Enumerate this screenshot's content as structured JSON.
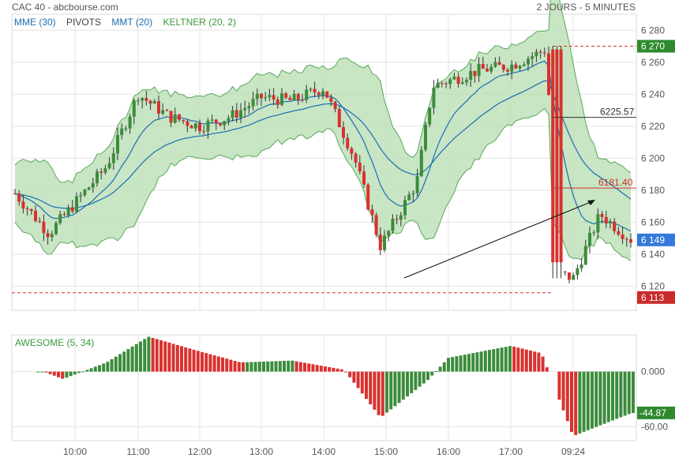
{
  "header": {
    "left_title": "CAC 40 - abcbourse.com",
    "right_title": "2 JOURS - 5 MINUTES"
  },
  "legend": [
    {
      "label": "MME (30)",
      "color": "#1a6fb3"
    },
    {
      "label": "PIVOTS",
      "color": "#444444"
    },
    {
      "label": "MMT (20)",
      "color": "#1a6fb3"
    },
    {
      "label": "KELTNER (20, 2)",
      "color": "#3a9a3a"
    }
  ],
  "colors": {
    "up": "#3c8c3c",
    "down": "#d9312f",
    "keltner_fill": "#b6dcb0",
    "keltner_line": "#5aa85a",
    "ma_line": "#1a6fb3",
    "grid": "#e6e6e6",
    "pivot": "#d9312f"
  },
  "oscillator": {
    "label": "AWESOME (5, 34)"
  },
  "price_badges": [
    {
      "text": "6 270",
      "value": 6270,
      "color": "#2f8a2f"
    },
    {
      "text": "6 149",
      "value": 6149,
      "color": "#3478d9"
    },
    {
      "text": "6 113",
      "value": 6113,
      "color": "#c92b2b"
    }
  ],
  "osc_badge": {
    "text": "-44.87",
    "value": -44.87,
    "color": "#2f8a2f"
  },
  "annotations": [
    {
      "text": "6225.57",
      "value": 6225.57,
      "color": "#333333"
    },
    {
      "text": "6181.40",
      "value": 6181.4,
      "color": "#c9302c"
    }
  ],
  "chart_data": [
    {
      "type": "candlestick",
      "title": "CAC 40 - abcbourse.com",
      "timeframe": "2 JOURS - 5 MINUTES",
      "x_tick_labels": [
        "10:00",
        "11:00",
        "12:00",
        "13:00",
        "14:00",
        "15:00",
        "16:00",
        "17:00",
        "09:24"
      ],
      "y_ticks": [
        6120,
        6140,
        6160,
        6180,
        6200,
        6220,
        6240,
        6260,
        6280
      ],
      "y_tick_labels": [
        "6 120",
        "6 140",
        "6 160",
        "6 180",
        "6 200",
        "6 220",
        "6 240",
        "6 260",
        "6 280"
      ],
      "ylim": [
        6105,
        6290
      ],
      "grid": true,
      "pivot_lines": [
        6270,
        6116
      ],
      "session_closes_approx": [
        {
          "x": "09:05",
          "close": 6178
        },
        {
          "x": "09:45",
          "close": 6153
        },
        {
          "x": "10:30",
          "close": 6195
        },
        {
          "x": "11:00",
          "close": 6240
        },
        {
          "x": "11:30",
          "close": 6226
        },
        {
          "x": "12:00",
          "close": 6220
        },
        {
          "x": "12:30",
          "close": 6226
        },
        {
          "x": "13:00",
          "close": 6238
        },
        {
          "x": "13:30",
          "close": 6236
        },
        {
          "x": "14:00",
          "close": 6244
        },
        {
          "x": "14:30",
          "close": 6200
        },
        {
          "x": "14:55",
          "close": 6145
        },
        {
          "x": "15:30",
          "close": 6185
        },
        {
          "x": "15:45",
          "close": 6245
        },
        {
          "x": "16:30",
          "close": 6255
        },
        {
          "x": "17:00",
          "close": 6258
        },
        {
          "x": "17:35",
          "close": 6268
        },
        {
          "x": "09:05 (day 2)",
          "close": 6128
        },
        {
          "x": "09:24",
          "close": 6125
        },
        {
          "x": "09:45",
          "close": 6165
        },
        {
          "x": "09:55",
          "close": 6149
        }
      ],
      "last_price": 6149
    },
    {
      "type": "bar",
      "title": "AWESOME (5, 34)",
      "y_ticks": [
        0
      ],
      "y_tick_labels": [
        "0.000"
      ],
      "hidden_tick_label": "-60.00",
      "ylim": [
        -75,
        40
      ],
      "last_value": -44.87,
      "x_tick_labels": [
        "10:00",
        "11:00",
        "12:00",
        "13:00",
        "14:00",
        "15:00",
        "16:00",
        "17:00",
        "09:24"
      ],
      "profile_approx": [
        {
          "x": "09:35",
          "value": 0
        },
        {
          "x": "09:55",
          "value": -8
        },
        {
          "x": "10:30",
          "value": 10
        },
        {
          "x": "11:10",
          "value": 38
        },
        {
          "x": "12:00",
          "value": 22
        },
        {
          "x": "12:40",
          "value": 10
        },
        {
          "x": "13:30",
          "value": 12
        },
        {
          "x": "14:20",
          "value": 2
        },
        {
          "x": "14:55",
          "value": -50
        },
        {
          "x": "15:40",
          "value": -10
        },
        {
          "x": "16:00",
          "value": 15
        },
        {
          "x": "17:00",
          "value": 28
        },
        {
          "x": "17:30",
          "value": 20
        },
        {
          "x": "09:24",
          "value": -70
        },
        {
          "x": "09:55",
          "value": -45
        }
      ]
    }
  ]
}
